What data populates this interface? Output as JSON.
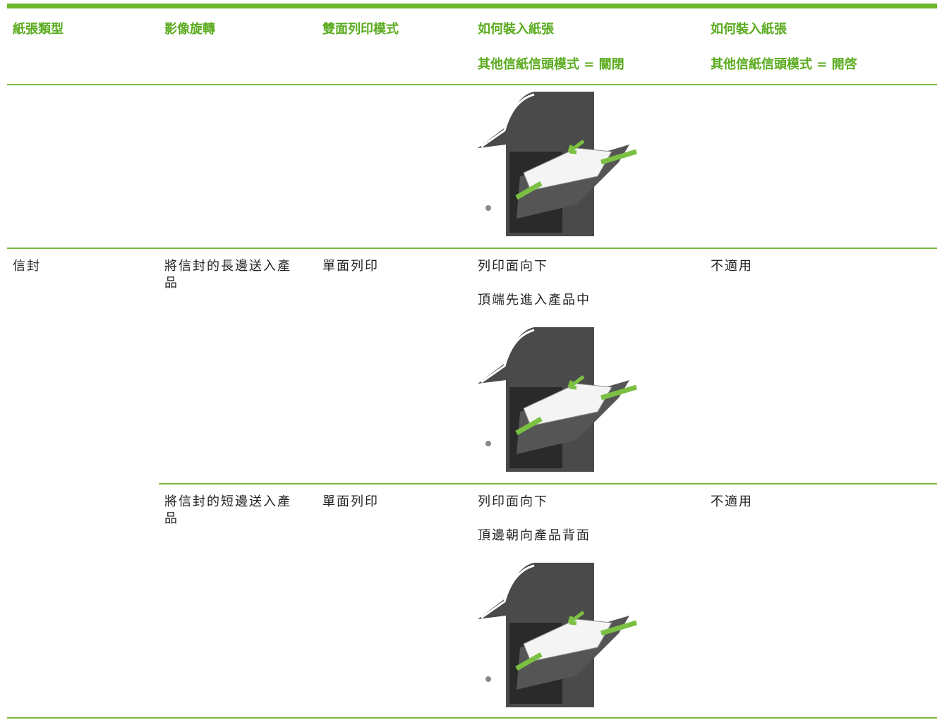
{
  "table": {
    "header": [
      {
        "label": "紙張類型"
      },
      {
        "label": "影像旋轉"
      },
      {
        "label": "雙面列印模式"
      },
      {
        "label": "如何裝入紙張",
        "sub": "其他信紙信頭模式 = 關閉"
      },
      {
        "label": "如何裝入紙張",
        "sub": "其他信紙信頭模式 = 開啓"
      }
    ],
    "rows": [
      {
        "paper_type": "信封",
        "orientation": "將信封的長邊送入產品",
        "duplex": "單面列印",
        "mode_off": [
          "列印面向下",
          "頂端先進入產品中"
        ],
        "mode_on": "不適用"
      },
      {
        "orientation": "將信封的短邊送入產品",
        "duplex": "單面列印",
        "mode_off": [
          "列印面向下",
          "頂邊朝向產品背面"
        ],
        "mode_on": "不適用"
      }
    ]
  }
}
